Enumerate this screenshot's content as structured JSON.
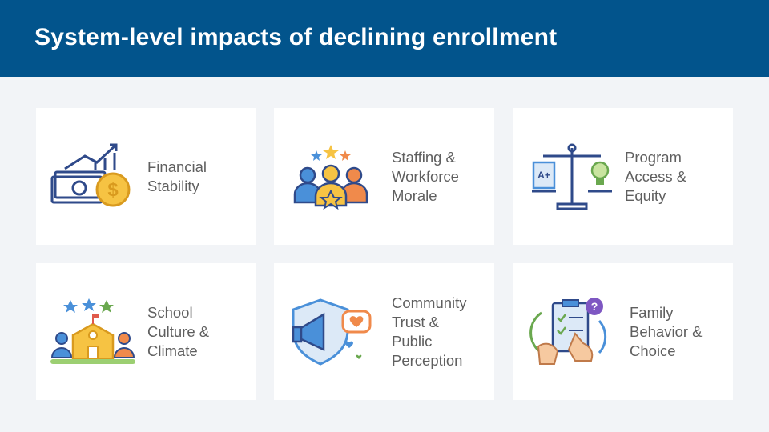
{
  "header": {
    "title": "System-level impacts of declining enrollment"
  },
  "cards": [
    {
      "lines": [
        "Financial",
        "Stability"
      ]
    },
    {
      "lines": [
        "Staffing &",
        "Workforce",
        "Morale"
      ]
    },
    {
      "lines": [
        "Program",
        "Access &",
        "Equity"
      ]
    },
    {
      "lines": [
        "School",
        "Culture &",
        "Climate"
      ]
    },
    {
      "lines": [
        "Community",
        "Trust &",
        "Public",
        "Perception"
      ]
    },
    {
      "lines": [
        "Family",
        "Behavior &",
        "Choice"
      ]
    }
  ]
}
